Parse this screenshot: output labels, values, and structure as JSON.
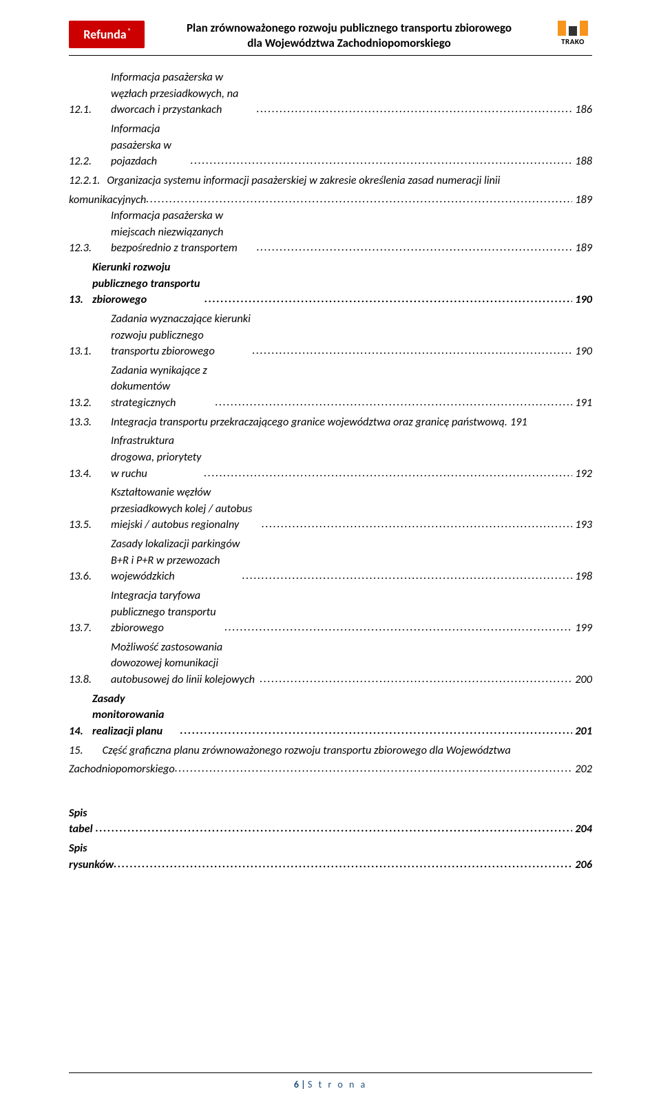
{
  "header": {
    "logo_left_text": "Refunda",
    "logo_left_reg": "®",
    "title_line1": "Plan zrównoważonego rozwoju publicznego transportu zbiorowego",
    "title_line2": "dla Województwa Zachodniopomorskiego",
    "logo_right_text": "TRAKO"
  },
  "toc": [
    {
      "level": 2,
      "num": "12.1.",
      "text": "Informacja pasażerska w węzłach przesiadkowych, na dworcach i przystankach",
      "page": "186",
      "bold": false,
      "nodots": false
    },
    {
      "level": 2,
      "num": "12.2.",
      "text": "Informacja pasażerska w pojazdach",
      "page": "188",
      "bold": false,
      "nodots": false
    },
    {
      "level": 2,
      "num": "12.2.1.",
      "wrap_first": "Organizacja systemu informacji pasażerskiej w zakresie określenia zasad numeracji linii",
      "wrap_rest": "komunikacyjnych",
      "page": "189",
      "bold": false,
      "nodots": false,
      "wrapped": true
    },
    {
      "level": 2,
      "num": "12.3.",
      "text": "Informacja pasażerska w miejscach niezwiązanych bezpośrednio z transportem",
      "page": "189",
      "bold": false,
      "nodots": false
    },
    {
      "level": 1,
      "num": "13.",
      "text": "Kierunki rozwoju publicznego transportu zbiorowego",
      "page": "190",
      "bold": true,
      "nodots": false
    },
    {
      "level": 2,
      "num": "13.1.",
      "text": "Zadania wyznaczające kierunki rozwoju publicznego transportu zbiorowego",
      "page": "190",
      "bold": false,
      "nodots": false
    },
    {
      "level": 2,
      "num": "13.2.",
      "text": "Zadania wynikające z dokumentów strategicznych",
      "page": "191",
      "bold": false,
      "nodots": false
    },
    {
      "level": 2,
      "num": "13.3.",
      "text": "Integracja transportu przekraczającego granice województwa oraz granicę państwową",
      "page": "191",
      "bold": false,
      "nodots": true
    },
    {
      "level": 2,
      "num": "13.4.",
      "text": "Infrastruktura drogowa, priorytety w ruchu",
      "page": "192",
      "bold": false,
      "nodots": false
    },
    {
      "level": 2,
      "num": "13.5.",
      "text": "Kształtowanie węzłów przesiadkowych kolej / autobus miejski / autobus regionalny",
      "page": "193",
      "bold": false,
      "nodots": false
    },
    {
      "level": 2,
      "num": "13.6.",
      "text": "Zasady lokalizacji parkingów B+R i P+R w przewozach wojewódzkich",
      "page": "198",
      "bold": false,
      "nodots": false
    },
    {
      "level": 2,
      "num": "13.7.",
      "text": "Integracja taryfowa publicznego transportu zbiorowego",
      "page": "199",
      "bold": false,
      "nodots": false
    },
    {
      "level": 2,
      "num": "13.8.",
      "text": "Możliwość zastosowania dowozowej komunikacji autobusowej do linii kolejowych",
      "page": "200",
      "bold": false,
      "nodots": false
    },
    {
      "level": 1,
      "num": "14.",
      "text": "Zasady monitorowania realizacji planu",
      "page": "201",
      "bold": true,
      "nodots": false
    },
    {
      "level": 1,
      "num": "15.",
      "wrap_first": "Część graficzna planu zrównoważonego rozwoju transportu zbiorowego dla Województwa",
      "wrap_rest": "Zachodniopomorskiego",
      "page": "202",
      "bold": true,
      "nodots": false,
      "wrapped": true
    }
  ],
  "toc_final": [
    {
      "text": "Spis tabel",
      "page": "204",
      "bold": true
    },
    {
      "text": "Spis rysunków",
      "page": "206",
      "bold": true
    }
  ],
  "footer": {
    "page_num": "6",
    "page_sep": " | ",
    "page_label": "S t r o n a"
  },
  "colors": {
    "logo_left_bg": "#cc0000",
    "logo_right_bar": "#f7941d",
    "logo_right_mid": "#333333",
    "footer_text": "#1f4e79",
    "text": "#000000",
    "bg": "#ffffff"
  }
}
